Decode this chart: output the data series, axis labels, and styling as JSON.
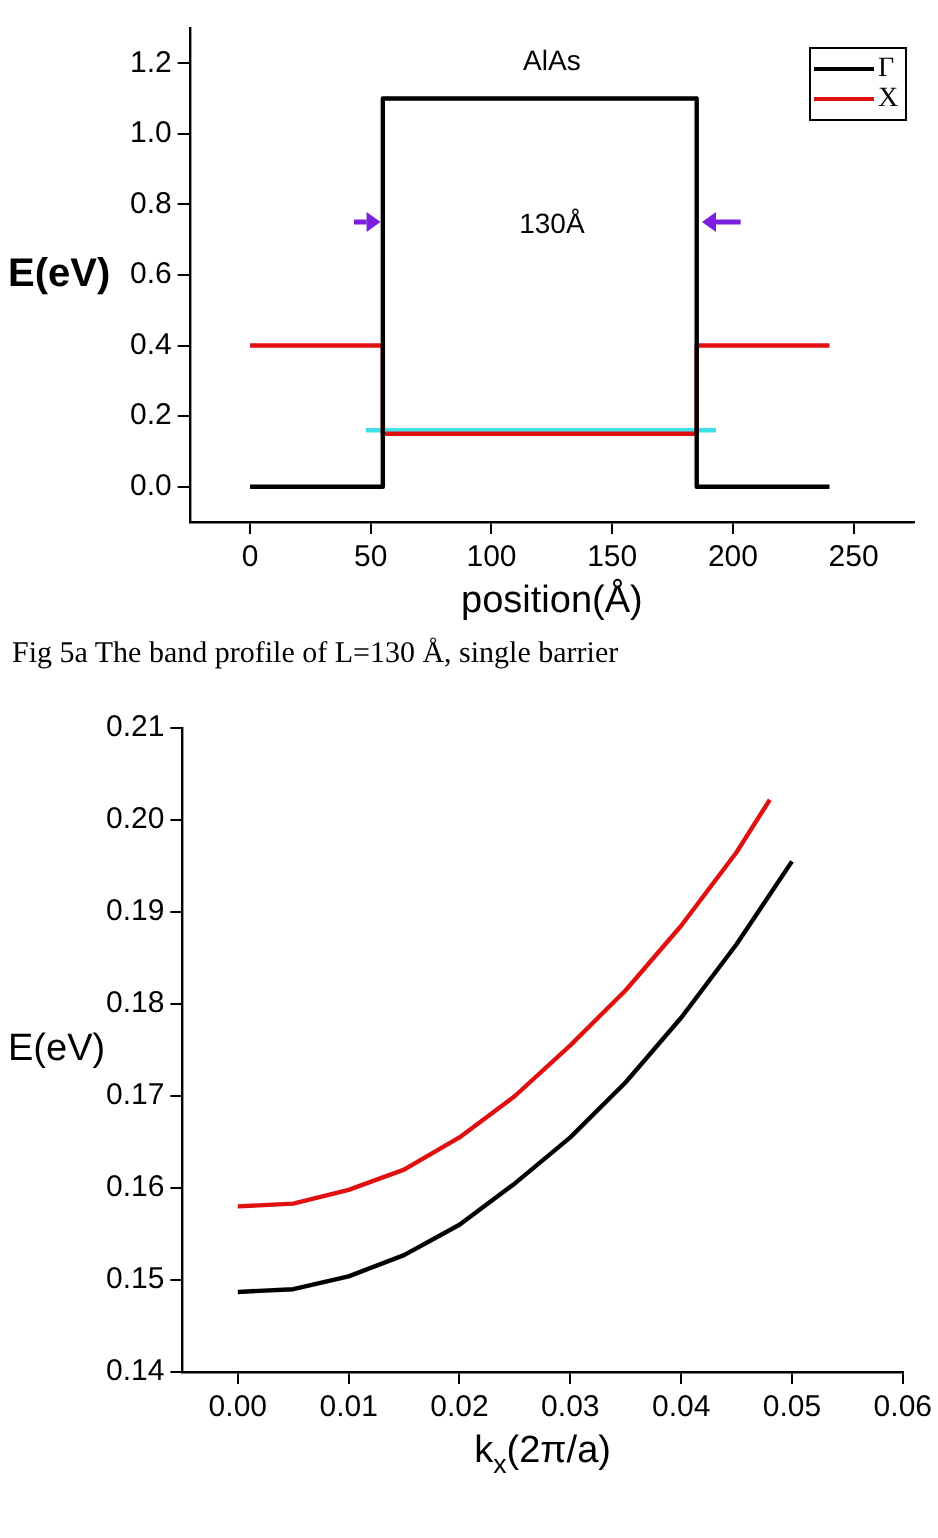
{
  "chart_data": [
    {
      "type": "line",
      "xlabel": "position(Å)",
      "ylabel": "E(eV)",
      "xlim": [
        -25,
        275
      ],
      "xticks": [
        0,
        50,
        100,
        150,
        200,
        250
      ],
      "ylim": [
        -0.1,
        1.3
      ],
      "yticks": [
        {
          "value": 0,
          "label": "0.0"
        },
        0.2,
        0.4,
        0.6,
        0.8,
        {
          "value": 1,
          "label": "1.0"
        },
        1.2
      ],
      "grid": false,
      "legend": "top right",
      "series": [
        {
          "name": "Γ",
          "color": "#000000",
          "x": [
            0,
            55,
            55,
            185,
            185,
            240
          ],
          "values": [
            0,
            0,
            1.1,
            1.1,
            0,
            0
          ]
        },
        {
          "name": "X",
          "color": "#e01010",
          "x": [
            0,
            55,
            55,
            185,
            185,
            240
          ],
          "values": [
            0.4,
            0.4,
            0.15,
            0.15,
            0.4,
            0.4
          ]
        },
        {
          "color": "#40e0e8",
          "x": [
            48,
            193
          ],
          "values": [
            0.16,
            0.16
          ]
        }
      ],
      "annotations": [
        "AlAs",
        "130Å",
        "Fig 5a The band profile of L=130 Å, single barrier"
      ]
    },
    {
      "type": "line",
      "xlabel": "k$_{x}$(2π/a)",
      "ylabel": "E(eV)",
      "xlim": [
        -0.005,
        0.06
      ],
      "xticks": [
        {
          "value": 0,
          "label": "0.00"
        },
        0.01,
        0.02,
        0.03,
        0.04,
        0.05,
        0.06
      ],
      "ylim": [
        0.14,
        0.21
      ],
      "yticks": [
        0.14,
        0.15,
        0.16,
        0.17,
        0.18,
        0.19,
        {
          "value": 0.2,
          "label": "0.20"
        },
        0.21
      ],
      "grid": false,
      "series": [
        {
          "color": "#e01010",
          "x": [
            0,
            0.005,
            0.01,
            0.015,
            0.02,
            0.025,
            0.03,
            0.035,
            0.04,
            0.045,
            0.048
          ],
          "values": [
            0.158,
            0.1583,
            0.1598,
            0.162,
            0.1655,
            0.17,
            0.1755,
            0.1815,
            0.1885,
            0.1965,
            0.2022
          ]
        },
        {
          "color": "#000000",
          "x": [
            0,
            0.005,
            0.01,
            0.015,
            0.02,
            0.025,
            0.03,
            0.035,
            0.04,
            0.045,
            0.05
          ],
          "values": [
            0.1487,
            0.149,
            0.1504,
            0.1527,
            0.156,
            0.1605,
            0.1655,
            0.1715,
            0.1785,
            0.1865,
            0.1955
          ]
        }
      ]
    }
  ]
}
